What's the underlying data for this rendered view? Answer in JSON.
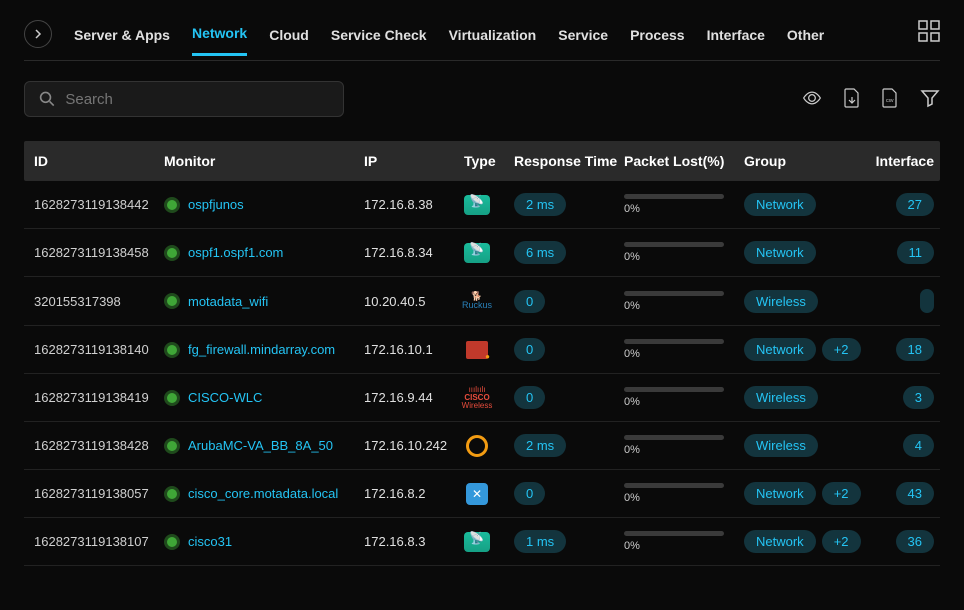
{
  "nav": {
    "items": [
      "Server & Apps",
      "Network",
      "Cloud",
      "Service Check",
      "Virtualization",
      "Service",
      "Process",
      "Interface",
      "Other"
    ],
    "active_index": 1
  },
  "search": {
    "placeholder": "Search"
  },
  "table": {
    "columns": [
      "ID",
      "Monitor",
      "IP",
      "Type",
      "Response Time",
      "Packet Lost(%)",
      "Group",
      "Interface"
    ],
    "rows": [
      {
        "id": "1628273119138442",
        "monitor": "ospfjunos",
        "ip": "172.16.8.38",
        "type": "router",
        "response": "2 ms",
        "packet": "0%",
        "groups": [
          "Network"
        ],
        "iface": "27"
      },
      {
        "id": "1628273119138458",
        "monitor": "ospf1.ospf1.com",
        "ip": "172.16.8.34",
        "type": "router",
        "response": "6 ms",
        "packet": "0%",
        "groups": [
          "Network"
        ],
        "iface": "11"
      },
      {
        "id": "320155317398",
        "monitor": "motadata_wifi",
        "ip": "10.20.40.5",
        "type": "ruckus",
        "response": "0",
        "packet": "0%",
        "groups": [
          "Wireless"
        ],
        "iface": ""
      },
      {
        "id": "1628273119138140",
        "monitor": "fg_firewall.mindarray.com",
        "ip": "172.16.10.1",
        "type": "firewall",
        "response": "0",
        "packet": "0%",
        "groups": [
          "Network",
          "+2"
        ],
        "iface": "18"
      },
      {
        "id": "1628273119138419",
        "monitor": "CISCO-WLC",
        "ip": "172.16.9.44",
        "type": "cisco",
        "response": "0",
        "packet": "0%",
        "groups": [
          "Wireless"
        ],
        "iface": "3"
      },
      {
        "id": "1628273119138428",
        "monitor": "ArubaMC-VA_BB_8A_50",
        "ip": "172.16.10.242",
        "type": "aruba",
        "response": "2 ms",
        "packet": "0%",
        "groups": [
          "Wireless"
        ],
        "iface": "4"
      },
      {
        "id": "1628273119138057",
        "monitor": "cisco_core.motadata.local",
        "ip": "172.16.8.2",
        "type": "switch",
        "response": "0",
        "packet": "0%",
        "groups": [
          "Network",
          "+2"
        ],
        "iface": "43"
      },
      {
        "id": "1628273119138107",
        "monitor": "cisco31",
        "ip": "172.16.8.3",
        "type": "router",
        "response": "1 ms",
        "packet": "0%",
        "groups": [
          "Network",
          "+2"
        ],
        "iface": "36"
      }
    ]
  },
  "colors": {
    "accent": "#24c4f4",
    "pill_bg": "#13343d",
    "header_bg": "#2a2a2a",
    "status_green": "#3fa637"
  }
}
